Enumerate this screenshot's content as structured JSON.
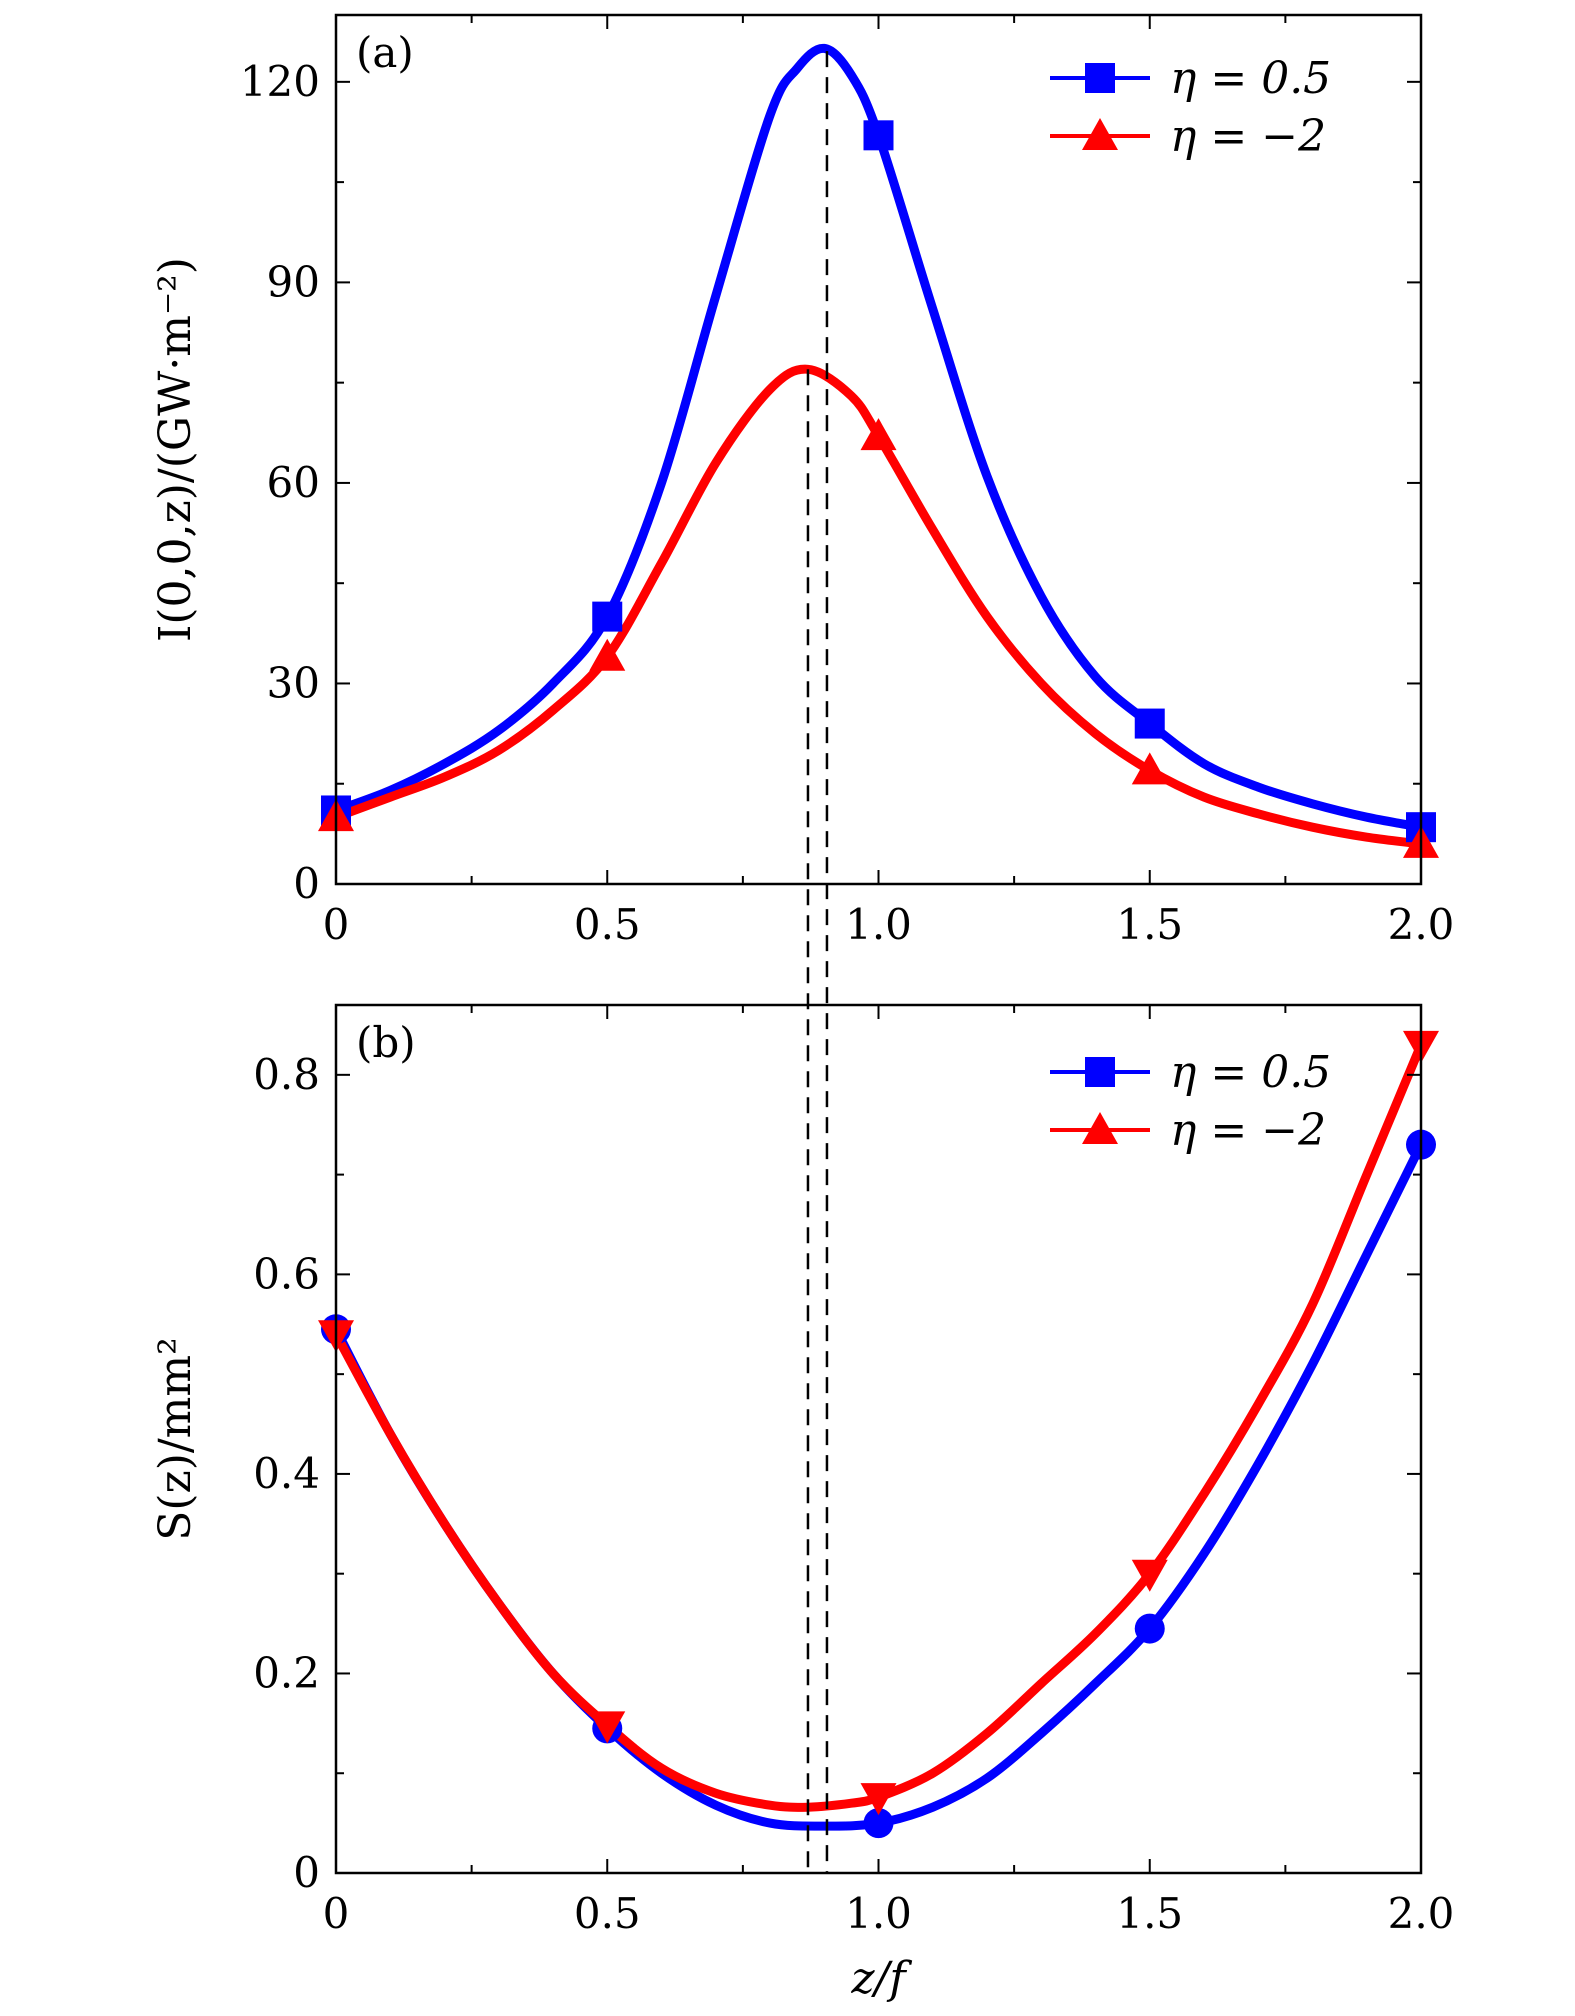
{
  "chart_data": [
    {
      "type": "line",
      "panel_label": "(a)",
      "ylabel": "I(0,0,z)/(GW·m⁻²)",
      "xlabel": "",
      "xlim": [
        0,
        2.0
      ],
      "ylim": [
        0,
        130
      ],
      "xticks": [
        "0",
        "0.5",
        "1.0",
        "1.5",
        "2.0"
      ],
      "yticks": [
        "0",
        "30",
        "60",
        "90",
        "120"
      ],
      "legend_position": "top-right",
      "marker_x": [
        0,
        0.5,
        1.0,
        1.5,
        2.0
      ],
      "series": [
        {
          "name": "η = 0.5",
          "color": "#0000ff",
          "marker": "square",
          "x": [
            0,
            0.1,
            0.2,
            0.3,
            0.4,
            0.5,
            0.6,
            0.7,
            0.8,
            0.85,
            0.9,
            0.95,
            1.0,
            1.1,
            1.2,
            1.3,
            1.4,
            1.5,
            1.6,
            1.7,
            1.8,
            1.9,
            2.0
          ],
          "y": [
            11,
            14,
            18,
            23,
            30,
            40,
            60,
            88,
            115,
            122,
            125,
            121,
            112,
            86,
            61,
            43,
            31,
            24,
            18,
            14.5,
            12,
            10,
            8.5
          ]
        },
        {
          "name": "η = −2",
          "color": "#ff0000",
          "marker": "triangle-up",
          "x": [
            0,
            0.1,
            0.2,
            0.3,
            0.4,
            0.5,
            0.6,
            0.7,
            0.8,
            0.87,
            0.95,
            1.0,
            1.1,
            1.2,
            1.3,
            1.4,
            1.5,
            1.6,
            1.7,
            1.8,
            1.9,
            2.0
          ],
          "y": [
            10,
            13,
            16,
            20,
            26,
            34,
            48,
            63,
            74,
            77,
            73,
            67,
            53,
            40,
            30,
            22.5,
            17,
            13,
            10.5,
            8.5,
            7,
            6
          ]
        }
      ]
    },
    {
      "type": "line",
      "panel_label": "(b)",
      "ylabel": "S(z)/mm²",
      "xlabel": "z/f",
      "xlim": [
        0,
        2.0
      ],
      "ylim": [
        0,
        0.87
      ],
      "xticks": [
        "0",
        "0.5",
        "1.0",
        "1.5",
        "2.0"
      ],
      "yticks": [
        "0",
        "0.2",
        "0.4",
        "0.6",
        "0.8"
      ],
      "legend_position": "top-right",
      "marker_x": [
        0,
        0.5,
        1.0,
        1.5,
        2.0
      ],
      "series": [
        {
          "name": "η = 0.5",
          "color": "#0000ff",
          "marker": "circle",
          "x": [
            0,
            0.1,
            0.2,
            0.3,
            0.4,
            0.5,
            0.6,
            0.7,
            0.8,
            0.9,
            1.0,
            1.1,
            1.2,
            1.3,
            1.4,
            1.5,
            1.6,
            1.7,
            1.8,
            1.9,
            2.0
          ],
          "y": [
            0.545,
            0.44,
            0.35,
            0.27,
            0.2,
            0.145,
            0.1,
            0.068,
            0.05,
            0.047,
            0.05,
            0.066,
            0.095,
            0.14,
            0.19,
            0.245,
            0.32,
            0.41,
            0.51,
            0.62,
            0.73
          ]
        },
        {
          "name": "η = −2",
          "color": "#ff0000",
          "marker": "triangle-down",
          "x": [
            0,
            0.1,
            0.2,
            0.3,
            0.4,
            0.5,
            0.6,
            0.7,
            0.8,
            0.87,
            0.95,
            1.0,
            1.1,
            1.2,
            1.3,
            1.4,
            1.5,
            1.6,
            1.7,
            1.8,
            1.9,
            2.0
          ],
          "y": [
            0.54,
            0.44,
            0.35,
            0.27,
            0.2,
            0.148,
            0.105,
            0.08,
            0.068,
            0.066,
            0.07,
            0.076,
            0.1,
            0.14,
            0.19,
            0.24,
            0.3,
            0.38,
            0.47,
            0.57,
            0.7,
            0.83
          ]
        }
      ]
    }
  ],
  "dashed_reference_lines_x": [
    0.87,
    0.905
  ]
}
